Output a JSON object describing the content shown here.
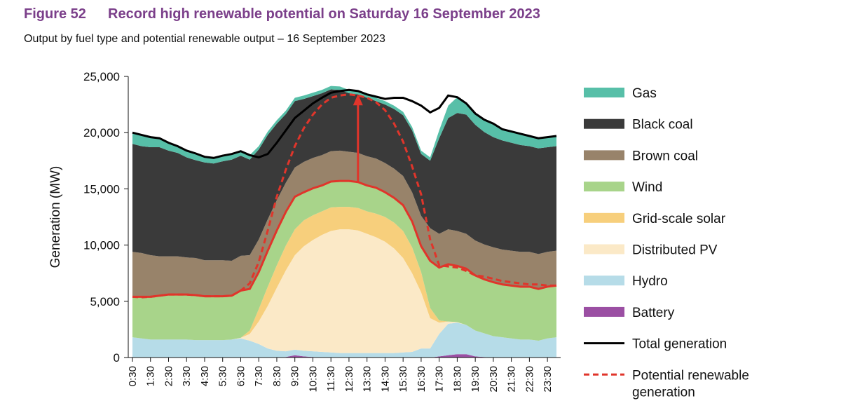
{
  "figure": {
    "number": "Figure 52",
    "title": "Record high renewable potential on Saturday 16 September 2023",
    "subtitle": "Output by fuel type and potential renewable output – 16 September 2023"
  },
  "chart_data": {
    "type": "area",
    "ylabel": "Generation (MW)",
    "ylim": [
      0,
      25000
    ],
    "yticks": [
      0,
      5000,
      10000,
      15000,
      20000,
      25000
    ],
    "ytick_labels": [
      "0",
      "5,000",
      "10,000",
      "15,000",
      "20,000",
      "25,000"
    ],
    "x_labels": [
      "0:30",
      "1:30",
      "2:30",
      "3:30",
      "4:30",
      "5:30",
      "6:30",
      "7:30",
      "8:30",
      "9:30",
      "10:30",
      "11:30",
      "12:30",
      "13:30",
      "14:30",
      "15:30",
      "16:30",
      "17:30",
      "18:30",
      "19:30",
      "20:30",
      "21:30",
      "22:30",
      "23:30"
    ],
    "x": [
      "0:30",
      "1:00",
      "1:30",
      "2:00",
      "2:30",
      "3:00",
      "3:30",
      "4:00",
      "4:30",
      "5:00",
      "5:30",
      "6:00",
      "6:30",
      "7:00",
      "7:30",
      "8:00",
      "8:30",
      "9:00",
      "9:30",
      "10:00",
      "10:30",
      "11:00",
      "11:30",
      "12:00",
      "12:30",
      "13:00",
      "13:30",
      "14:00",
      "14:30",
      "15:00",
      "15:30",
      "16:00",
      "16:30",
      "17:00",
      "17:30",
      "18:00",
      "18:30",
      "19:00",
      "19:30",
      "20:00",
      "20:30",
      "21:00",
      "21:30",
      "22:00",
      "22:30",
      "23:00",
      "23:30",
      "0:00"
    ],
    "legend_position": "right",
    "series": [
      {
        "name": "Battery",
        "color": "#9b4fa3",
        "kind": "area",
        "values": [
          0,
          0,
          0,
          0,
          0,
          0,
          0,
          0,
          0,
          0,
          0,
          0,
          0,
          0,
          0,
          0,
          0,
          50,
          200,
          100,
          50,
          0,
          0,
          0,
          0,
          0,
          0,
          0,
          0,
          0,
          0,
          0,
          0,
          0,
          100,
          200,
          300,
          300,
          100,
          50,
          0,
          0,
          0,
          0,
          0,
          0,
          0,
          0
        ]
      },
      {
        "name": "Hydro",
        "color": "#b6dce8",
        "kind": "area",
        "values": [
          1800,
          1700,
          1600,
          1600,
          1600,
          1600,
          1600,
          1550,
          1550,
          1550,
          1550,
          1600,
          1700,
          1500,
          1200,
          800,
          600,
          500,
          500,
          500,
          500,
          500,
          450,
          400,
          400,
          400,
          400,
          400,
          400,
          400,
          450,
          500,
          800,
          800,
          2000,
          2800,
          2800,
          2600,
          2300,
          2100,
          1900,
          1800,
          1700,
          1600,
          1600,
          1500,
          1700,
          1800
        ]
      },
      {
        "name": "Distributed PV",
        "color": "#fbe9c7",
        "kind": "area",
        "values": [
          0,
          0,
          0,
          0,
          0,
          0,
          0,
          0,
          0,
          0,
          0,
          0,
          50,
          600,
          2000,
          3800,
          5600,
          7200,
          8400,
          9300,
          9900,
          10400,
          10800,
          11000,
          11000,
          10900,
          10600,
          10300,
          9900,
          9300,
          8400,
          7000,
          5000,
          2700,
          1000,
          200,
          50,
          0,
          0,
          0,
          0,
          0,
          0,
          0,
          0,
          0,
          0,
          0
        ]
      },
      {
        "name": "Grid-scale solar",
        "color": "#f7cf7c",
        "kind": "area",
        "values": [
          0,
          0,
          0,
          0,
          0,
          0,
          0,
          0,
          0,
          0,
          0,
          0,
          0,
          300,
          1100,
          1700,
          2000,
          2200,
          2300,
          2300,
          2200,
          2100,
          2100,
          2000,
          2000,
          2000,
          2000,
          2100,
          2200,
          2300,
          2400,
          2300,
          1800,
          900,
          200,
          0,
          0,
          0,
          0,
          0,
          0,
          0,
          0,
          0,
          0,
          0,
          0,
          0
        ]
      },
      {
        "name": "Wind",
        "color": "#a8d48a",
        "kind": "area",
        "values": [
          3600,
          3700,
          3800,
          3900,
          4000,
          4000,
          4000,
          4000,
          3900,
          3900,
          3900,
          3900,
          4200,
          3700,
          3300,
          3200,
          3100,
          3000,
          2900,
          2500,
          2400,
          2300,
          2300,
          2300,
          2300,
          2300,
          2300,
          2300,
          2200,
          2200,
          2300,
          2300,
          2300,
          4200,
          4700,
          5100,
          5000,
          5000,
          4900,
          4800,
          4800,
          4700,
          4700,
          4700,
          4700,
          4600,
          4600,
          4600
        ]
      },
      {
        "name": "Brown coal",
        "color": "#98836a",
        "kind": "area",
        "values": [
          4000,
          3900,
          3700,
          3500,
          3400,
          3400,
          3300,
          3300,
          3200,
          3200,
          3200,
          3100,
          3100,
          3000,
          2900,
          2800,
          2700,
          2600,
          2600,
          2700,
          2700,
          2700,
          2700,
          2700,
          2600,
          2600,
          2600,
          2600,
          2600,
          2600,
          2600,
          2600,
          2700,
          2900,
          3000,
          3100,
          3100,
          3100,
          3100,
          3100,
          3100,
          3100,
          3100,
          3100,
          3100,
          3100,
          3100,
          3100
        ]
      },
      {
        "name": "Black coal",
        "color": "#3a3a3a",
        "kind": "area",
        "values": [
          9600,
          9500,
          9600,
          9700,
          9400,
          9200,
          8900,
          8700,
          8700,
          8600,
          8800,
          9000,
          8900,
          8500,
          8000,
          7500,
          6800,
          6100,
          5900,
          5600,
          5500,
          5500,
          5500,
          5400,
          5200,
          5200,
          5200,
          5100,
          5200,
          5300,
          5400,
          5500,
          5500,
          6000,
          8500,
          9900,
          10500,
          10600,
          10300,
          10000,
          9800,
          9700,
          9600,
          9500,
          9400,
          9400,
          9300,
          9300
        ]
      },
      {
        "name": "Gas",
        "color": "#57bfa8",
        "kind": "area",
        "values": [
          1000,
          1000,
          900,
          800,
          700,
          600,
          600,
          600,
          500,
          500,
          500,
          500,
          400,
          400,
          300,
          300,
          300,
          300,
          300,
          300,
          300,
          300,
          300,
          300,
          300,
          300,
          300,
          300,
          300,
          300,
          300,
          300,
          300,
          300,
          700,
          1100,
          1400,
          1000,
          1000,
          1100,
          1100,
          1000,
          1000,
          1000,
          900,
          900,
          900,
          900
        ]
      },
      {
        "name": "Total generation",
        "color": "#000000",
        "kind": "line",
        "values": [
          20000,
          19800,
          19600,
          19500,
          19100,
          18800,
          18400,
          18150,
          17850,
          17750,
          17950,
          18100,
          18350,
          18000,
          17800,
          18100,
          19100,
          20200,
          21300,
          21950,
          22600,
          23100,
          23550,
          23700,
          23800,
          23700,
          23400,
          23200,
          23000,
          23100,
          23100,
          22800,
          22400,
          21800,
          22200,
          23300,
          23150,
          22600,
          21700,
          21150,
          20800,
          20300,
          20100,
          19900,
          19700,
          19500,
          19600,
          19700
        ]
      },
      {
        "name": "Potential renewable generation",
        "color": "#e0352b",
        "kind": "dashed",
        "values": [
          5400,
          5350,
          5400,
          5500,
          5600,
          5600,
          5600,
          5550,
          5450,
          5450,
          5450,
          5500,
          5950,
          6600,
          8500,
          11300,
          14300,
          16700,
          18800,
          20400,
          21600,
          22500,
          23100,
          23300,
          23400,
          23300,
          23100,
          22700,
          22000,
          20800,
          19200,
          17000,
          14500,
          10500,
          8200,
          8100,
          8000,
          7700,
          7300,
          7200,
          7000,
          6800,
          6700,
          6600,
          6500,
          6500,
          6400,
          6400
        ]
      }
    ]
  }
}
